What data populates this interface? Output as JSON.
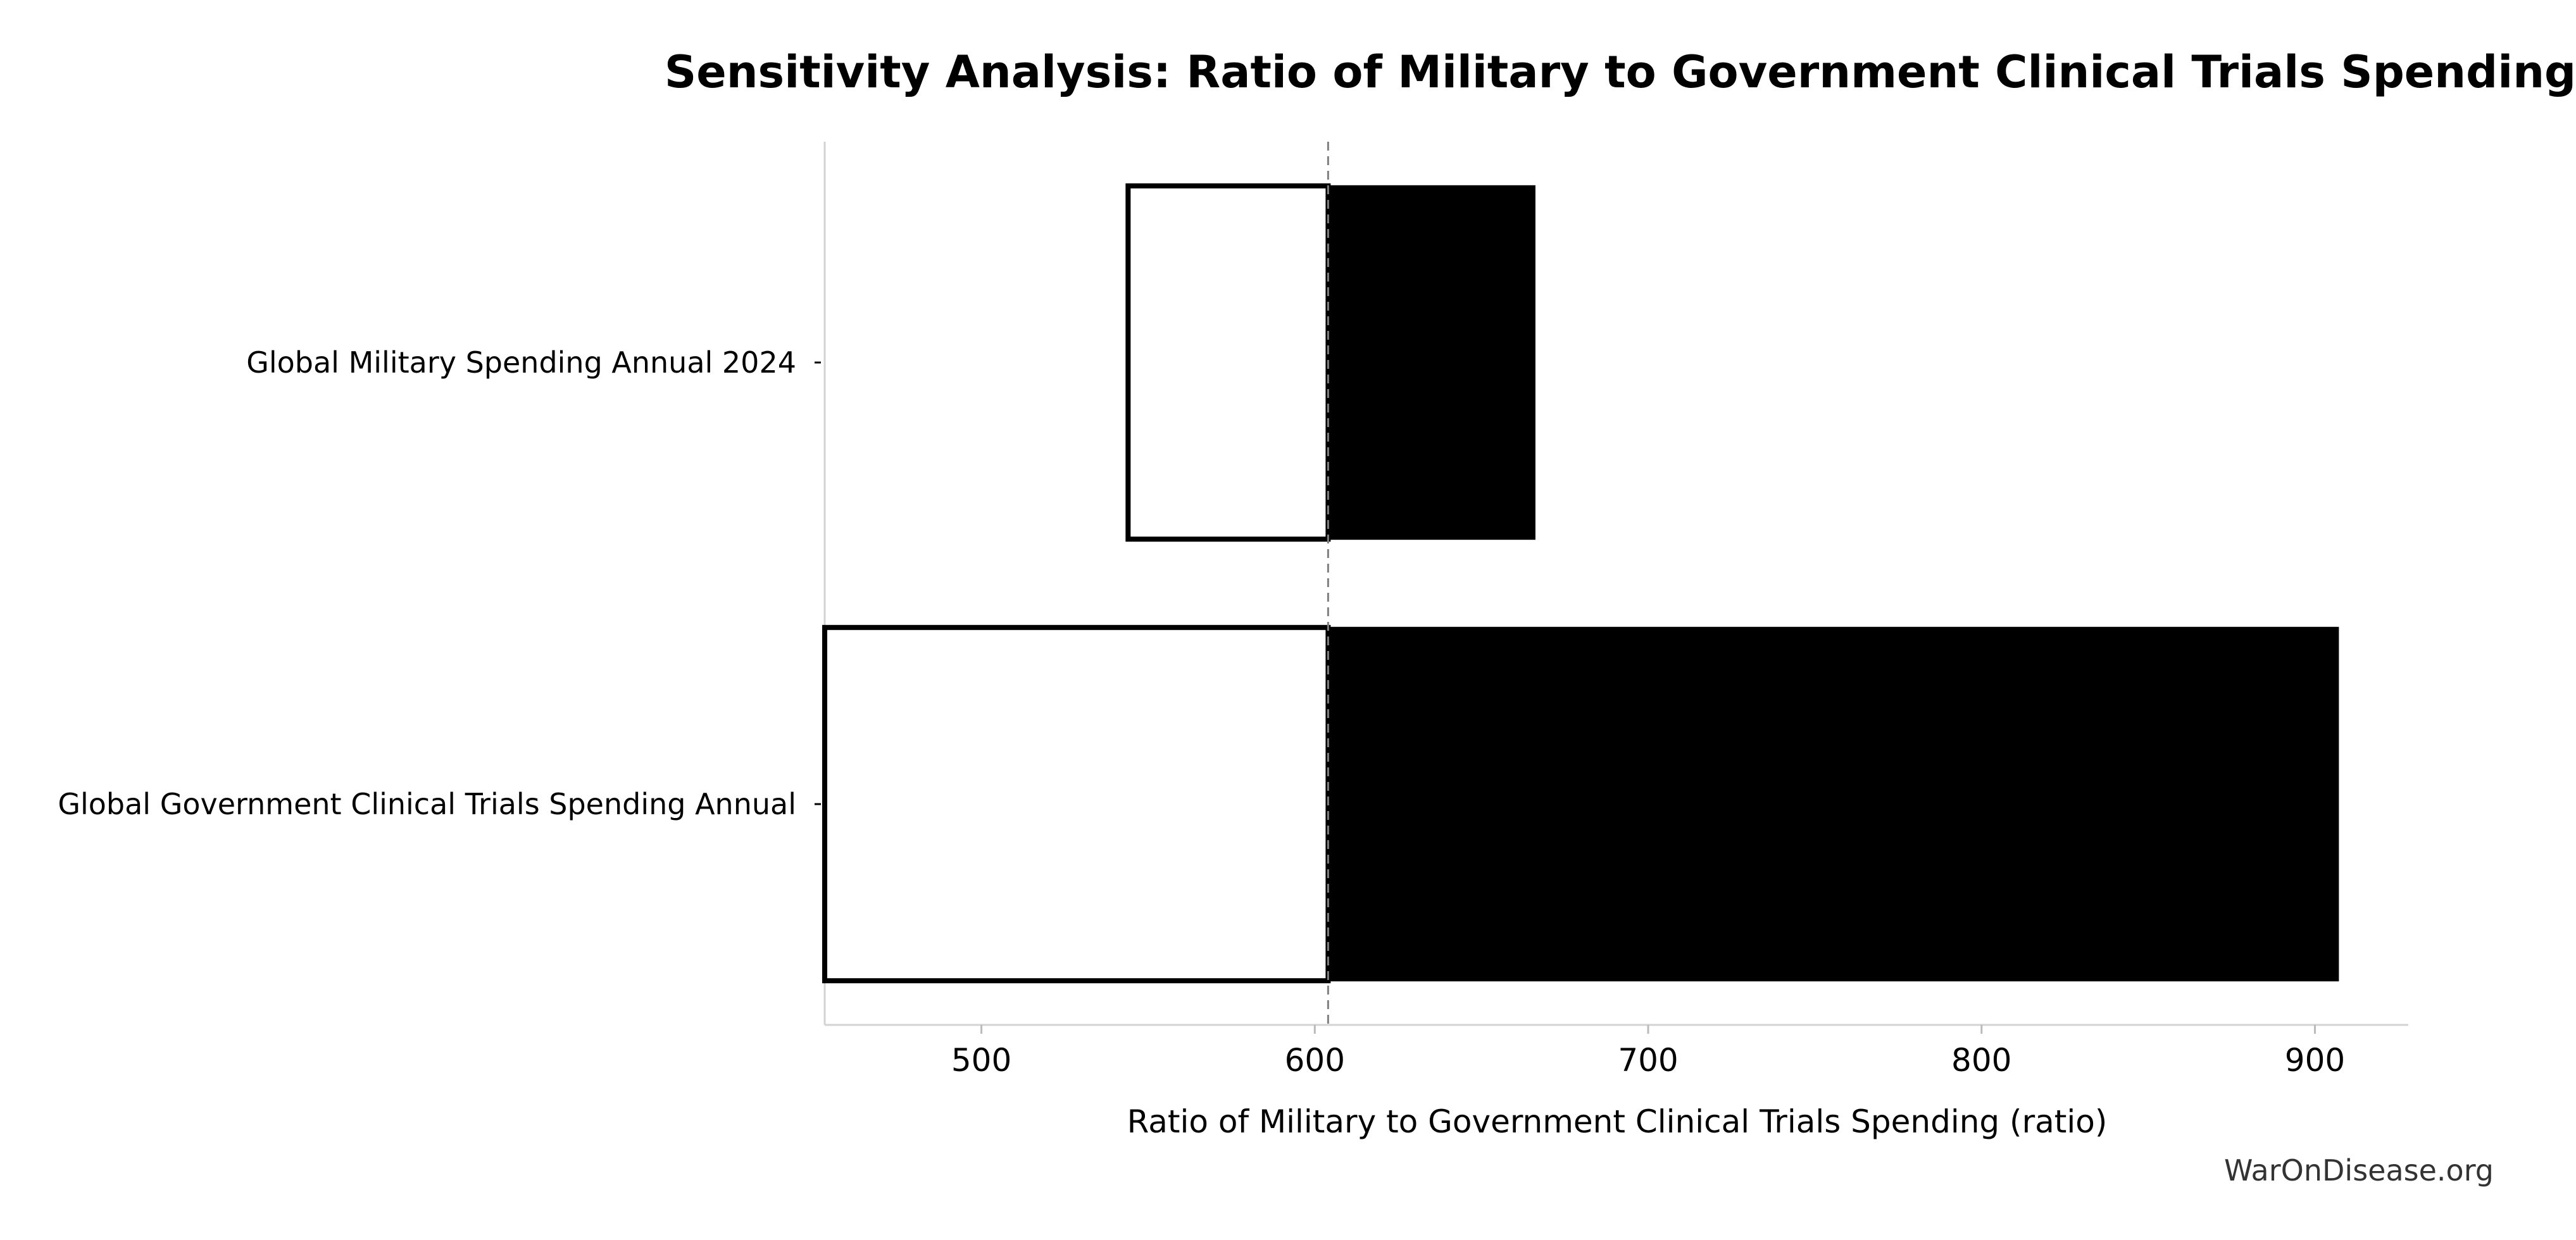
{
  "chart_data": {
    "type": "tornado",
    "title": "Sensitivity Analysis: Ratio of Military to Government Clinical Trials Spending",
    "xlabel": "Ratio of Military to Government Clinical Trials Spending (ratio)",
    "ylabel": "",
    "xlim": [
      453,
      928
    ],
    "xticks": [
      500,
      600,
      700,
      800,
      900
    ],
    "baseline": 604,
    "bars": [
      {
        "label": "Global Military Spending Annual 2024",
        "low": 544,
        "high": 666
      },
      {
        "label": "Global Government Clinical Trials Spending Annual",
        "low": 453,
        "high": 907
      }
    ],
    "legend": "none",
    "grid": false
  },
  "watermark": "WarOnDisease.org",
  "colors": {
    "low_fill": "#ffffff",
    "low_edge": "#000000",
    "high_fill": "#000000",
    "axis": "#d3d3d3",
    "baseline": "#808080",
    "text": "#000000",
    "watermark": "#333333"
  }
}
